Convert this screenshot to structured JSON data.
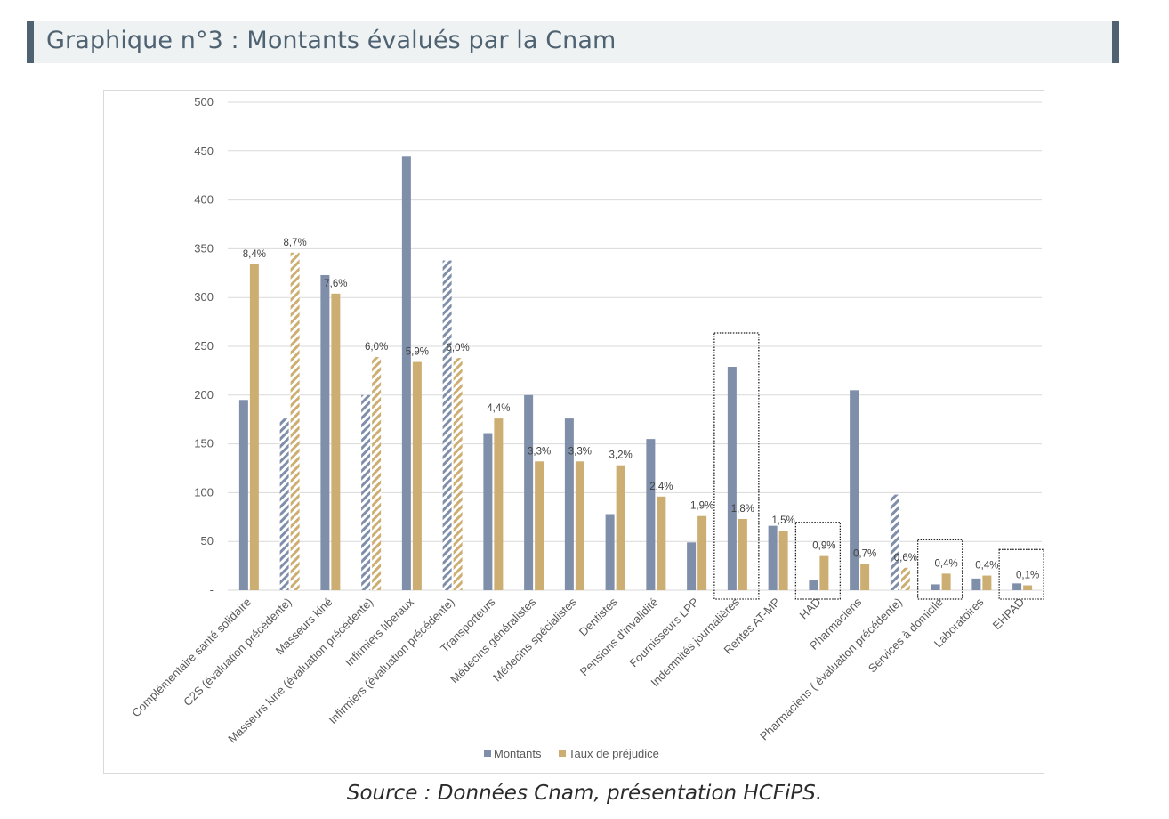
{
  "header": {
    "title": "Graphique n°3 : Montants évalués par la Cnam"
  },
  "source": "Source : Données Cnam, présentation HCFiPS.",
  "colors": {
    "montants": "#7f8faa",
    "taux": "#cdae72",
    "banner_accent": "#4f6272"
  },
  "chart_data": {
    "type": "bar",
    "title": "Montants évalués par la Cnam",
    "xlabel": "",
    "ylabel": "",
    "ylim": [
      0,
      500
    ],
    "yticks": [
      0,
      50,
      100,
      150,
      200,
      250,
      300,
      350,
      400,
      450,
      500
    ],
    "ytick_labels": [
      "-",
      "50",
      "100",
      "150",
      "200",
      "250",
      "300",
      "350",
      "400",
      "450",
      "500"
    ],
    "grid": true,
    "legend_position": "bottom",
    "categories": [
      "Complémentaire santé solidaire",
      "C2S (évaluation précédente)",
      "Masseurs kiné",
      "Masseurs kiné (évaluation précédente)",
      "Infirmiers libéraux",
      "Infirmiers (évaluation précédente)",
      "Transporteurs",
      "Médecins généralistes",
      "Médecins spécialistes",
      "Dentistes",
      "Pensions d'invalidité",
      "Fournisseurs LPP",
      "Indemnités journalières",
      "Rentes AT-MP",
      "HAD",
      "Pharmaciens",
      "Pharmaciens ( évaluation précédente)",
      "Services à domicile",
      "Laboratoires",
      "EHPAD"
    ],
    "previous_evaluation": [
      false,
      true,
      false,
      true,
      false,
      true,
      false,
      false,
      false,
      false,
      false,
      false,
      false,
      false,
      false,
      false,
      true,
      false,
      false,
      false
    ],
    "highlighted": [
      false,
      false,
      false,
      false,
      false,
      false,
      false,
      false,
      false,
      false,
      false,
      false,
      true,
      false,
      true,
      false,
      false,
      true,
      false,
      true
    ],
    "series": [
      {
        "name": "Montants",
        "values": [
          195,
          176,
          323,
          200,
          445,
          338,
          161,
          200,
          176,
          78,
          155,
          49,
          229,
          66,
          10,
          205,
          98,
          6,
          12,
          7
        ]
      },
      {
        "name": "Taux de préjudice",
        "values": [
          334,
          346,
          304,
          239,
          234,
          238,
          176,
          132,
          132,
          128,
          96,
          76,
          73,
          61,
          35,
          27,
          23,
          17,
          15,
          5
        ],
        "data_labels": [
          "8,4%",
          "8,7%",
          "7,6%",
          "6,0%",
          "5,9%",
          "6,0%",
          "4,4%",
          "3,3%",
          "3,3%",
          "3,2%",
          "2,4%",
          "1,9%",
          "1,8%",
          "1,5%",
          "0,9%",
          "0,7%",
          "0,6%",
          "0,4%",
          "0,4%",
          "0,1%"
        ]
      }
    ]
  }
}
